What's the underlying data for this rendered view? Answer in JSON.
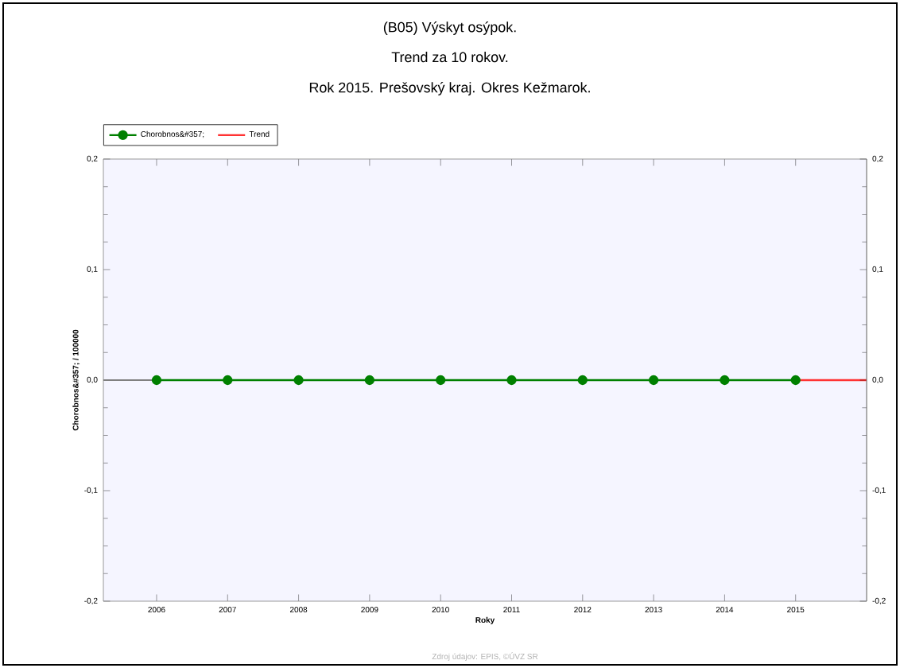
{
  "chart_data": {
    "type": "line",
    "title": "(B05) Výskyt osýpok.",
    "subtitle": "Trend za 10 rokov.",
    "annotations": [
      "Rok 2015. Prešovský kraj. Okres Kežmarok.",
      "Zdroj údajov: EPIS, ©ÚVZ SR"
    ],
    "xlabel": "Roky",
    "ylabel": "Chorobnos&#357; / 100000",
    "x": [
      2006,
      2007,
      2008,
      2009,
      2010,
      2011,
      2012,
      2013,
      2014,
      2015
    ],
    "xlim": [
      2005.25,
      2016
    ],
    "xticks": [
      2006,
      2007,
      2008,
      2009,
      2010,
      2011,
      2012,
      2013,
      2014,
      2015
    ],
    "ylim": [
      -0.2,
      0.2
    ],
    "yticks": [
      {
        "value": -0.2,
        "label": "-0,2"
      },
      {
        "value": -0.1,
        "label": "-0,1"
      },
      {
        "value": 0,
        "label": "0,0"
      },
      {
        "value": 0.1,
        "label": "0,1"
      },
      {
        "value": 0.2,
        "label": "0,2"
      }
    ],
    "y2lim": [
      -0.2,
      0.2
    ],
    "y2ticks": [
      {
        "value": -0.2,
        "label": "-0,2"
      },
      {
        "value": -0.1,
        "label": "-0,1"
      },
      {
        "value": 0,
        "label": "0,0"
      },
      {
        "value": 0.1,
        "label": "0,1"
      },
      {
        "value": 0.2,
        "label": "0,2"
      }
    ],
    "series": [
      {
        "name": "Chorobnos&#357;",
        "color": "#008000",
        "marker": "circle",
        "values": [
          0,
          0,
          0,
          0,
          0,
          0,
          0,
          0,
          0,
          0
        ]
      },
      {
        "name": "Trend",
        "color": "#ff3333",
        "marker": "none",
        "x": [
          2015,
          2016
        ],
        "values": [
          0,
          0
        ]
      }
    ],
    "ref_lines": [
      {
        "axis": "y",
        "value": 0,
        "color": "#808080"
      }
    ],
    "legend": "top left",
    "grid": false
  }
}
